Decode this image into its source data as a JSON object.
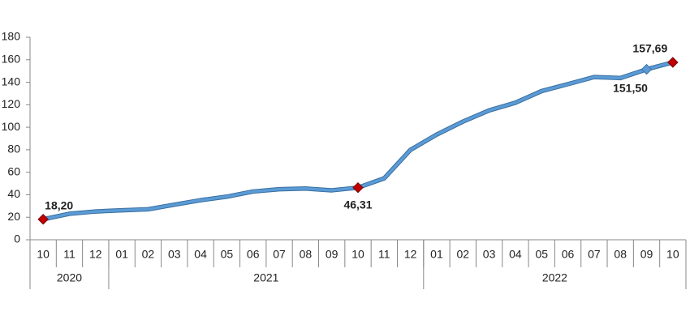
{
  "chart_data": {
    "type": "line",
    "categories": [
      "10",
      "11",
      "12",
      "01",
      "02",
      "03",
      "04",
      "05",
      "06",
      "07",
      "08",
      "09",
      "10",
      "11",
      "12",
      "01",
      "02",
      "03",
      "04",
      "05",
      "06",
      "07",
      "08",
      "09",
      "10"
    ],
    "category_groups": [
      {
        "label": "2020",
        "size": 3
      },
      {
        "label": "2021",
        "size": 12
      },
      {
        "label": "2022",
        "size": 10
      }
    ],
    "series": [
      {
        "color": "#5b9bd5",
        "values": [
          18.2,
          23.11,
          25.15,
          26.16,
          27.09,
          31.2,
          35.17,
          38.33,
          42.89,
          44.92,
          45.52,
          43.96,
          46.31,
          54.62,
          79.89,
          93.53,
          105.01,
          114.97,
          121.82,
          132.16,
          138.31,
          144.61,
          143.75,
          151.5,
          157.69
        ],
        "value_labels": [
          "18,20",
          null,
          null,
          null,
          null,
          null,
          null,
          null,
          null,
          null,
          null,
          null,
          "46,31",
          null,
          null,
          null,
          null,
          null,
          null,
          null,
          null,
          null,
          null,
          "151,50",
          "157,69"
        ]
      }
    ],
    "ylim": [
      0,
      180
    ],
    "yticks": [
      0,
      20,
      40,
      60,
      80,
      100,
      120,
      140,
      160,
      180
    ],
    "grid": false
  }
}
